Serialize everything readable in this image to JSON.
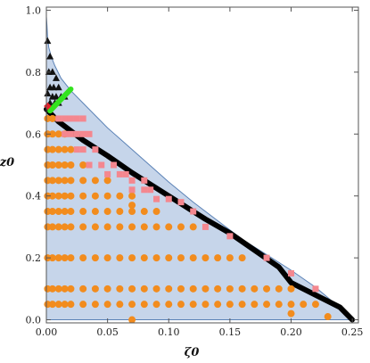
{
  "chart_data": {
    "type": "scatter",
    "xlabel": "ζ0",
    "ylabel": "z0",
    "xlim": [
      0,
      0.255
    ],
    "ylim": [
      -0.01,
      1.01
    ],
    "x_ticks": [
      "0.00",
      "0.05",
      "0.10",
      "0.15",
      "0.20",
      "0.25"
    ],
    "x_tick_values": [
      0,
      0.05,
      0.1,
      0.15,
      0.2,
      0.25
    ],
    "y_ticks": [
      "0.0",
      "0.2",
      "0.4",
      "0.6",
      "0.8",
      "1.0"
    ],
    "y_tick_values": [
      0,
      0.2,
      0.4,
      0.6,
      0.8,
      1.0
    ],
    "colors": {
      "region_fill": "#c6d5ea",
      "region_edge": "#5b82b6",
      "circles": "#f28c1e",
      "squares": "#f4878f",
      "triangles": "#111111",
      "thick_curve": "#000000",
      "green_segment": "#33e31f",
      "red_mark": "#e8202a"
    },
    "region_boundary": [
      [
        0.0,
        0.98
      ],
      [
        0.0005,
        0.95
      ],
      [
        0.001,
        0.91
      ],
      [
        0.002,
        0.88
      ],
      [
        0.004,
        0.85
      ],
      [
        0.007,
        0.82
      ],
      [
        0.012,
        0.78
      ],
      [
        0.02,
        0.74
      ],
      [
        0.03,
        0.7
      ],
      [
        0.04,
        0.66
      ],
      [
        0.05,
        0.62
      ],
      [
        0.06,
        0.585
      ],
      [
        0.07,
        0.55
      ],
      [
        0.08,
        0.515
      ],
      [
        0.09,
        0.48
      ],
      [
        0.1,
        0.445
      ],
      [
        0.12,
        0.38
      ],
      [
        0.14,
        0.32
      ],
      [
        0.16,
        0.26
      ],
      [
        0.18,
        0.21
      ],
      [
        0.2,
        0.16
      ],
      [
        0.22,
        0.105
      ],
      [
        0.235,
        0.055
      ],
      [
        0.245,
        0.02
      ],
      [
        0.25,
        0.0
      ],
      [
        0.0,
        0.0
      ]
    ],
    "thick_curve": [
      [
        0.0,
        0.68
      ],
      [
        0.01,
        0.64
      ],
      [
        0.03,
        0.58
      ],
      [
        0.05,
        0.53
      ],
      [
        0.07,
        0.475
      ],
      [
        0.09,
        0.425
      ],
      [
        0.11,
        0.375
      ],
      [
        0.13,
        0.325
      ],
      [
        0.15,
        0.28
      ],
      [
        0.17,
        0.225
      ],
      [
        0.19,
        0.17
      ],
      [
        0.2,
        0.12
      ],
      [
        0.22,
        0.08
      ],
      [
        0.24,
        0.04
      ],
      [
        0.25,
        0.0
      ]
    ],
    "green_segment": [
      [
        0.003,
        0.675
      ],
      [
        0.02,
        0.745
      ]
    ],
    "red_mark": [
      0.001,
      0.69
    ],
    "series": [
      {
        "marker": "circle",
        "points": [
          [
            0.001,
            0.65
          ],
          [
            0.005,
            0.65
          ],
          [
            0.001,
            0.6
          ],
          [
            0.005,
            0.6
          ],
          [
            0.01,
            0.6
          ],
          [
            0.015,
            0.6
          ],
          [
            0.001,
            0.55
          ],
          [
            0.005,
            0.55
          ],
          [
            0.01,
            0.55
          ],
          [
            0.015,
            0.55
          ],
          [
            0.02,
            0.55
          ],
          [
            0.001,
            0.5
          ],
          [
            0.005,
            0.5
          ],
          [
            0.01,
            0.5
          ],
          [
            0.015,
            0.5
          ],
          [
            0.02,
            0.5
          ],
          [
            0.03,
            0.5
          ],
          [
            0.001,
            0.45
          ],
          [
            0.005,
            0.45
          ],
          [
            0.01,
            0.45
          ],
          [
            0.015,
            0.45
          ],
          [
            0.02,
            0.45
          ],
          [
            0.03,
            0.45
          ],
          [
            0.04,
            0.45
          ],
          [
            0.05,
            0.45
          ],
          [
            0.001,
            0.4
          ],
          [
            0.005,
            0.4
          ],
          [
            0.01,
            0.4
          ],
          [
            0.015,
            0.4
          ],
          [
            0.02,
            0.4
          ],
          [
            0.03,
            0.4
          ],
          [
            0.04,
            0.4
          ],
          [
            0.05,
            0.4
          ],
          [
            0.06,
            0.4
          ],
          [
            0.07,
            0.4
          ],
          [
            0.07,
            0.37
          ],
          [
            0.001,
            0.35
          ],
          [
            0.005,
            0.35
          ],
          [
            0.01,
            0.35
          ],
          [
            0.015,
            0.35
          ],
          [
            0.02,
            0.35
          ],
          [
            0.03,
            0.35
          ],
          [
            0.04,
            0.35
          ],
          [
            0.05,
            0.35
          ],
          [
            0.06,
            0.35
          ],
          [
            0.07,
            0.35
          ],
          [
            0.08,
            0.35
          ],
          [
            0.09,
            0.35
          ],
          [
            0.001,
            0.3
          ],
          [
            0.005,
            0.3
          ],
          [
            0.01,
            0.3
          ],
          [
            0.015,
            0.3
          ],
          [
            0.02,
            0.3
          ],
          [
            0.03,
            0.3
          ],
          [
            0.04,
            0.3
          ],
          [
            0.05,
            0.3
          ],
          [
            0.06,
            0.3
          ],
          [
            0.07,
            0.3
          ],
          [
            0.08,
            0.3
          ],
          [
            0.09,
            0.3
          ],
          [
            0.1,
            0.3
          ],
          [
            0.11,
            0.3
          ],
          [
            0.12,
            0.3
          ],
          [
            0.001,
            0.2
          ],
          [
            0.005,
            0.2
          ],
          [
            0.01,
            0.2
          ],
          [
            0.015,
            0.2
          ],
          [
            0.02,
            0.2
          ],
          [
            0.03,
            0.2
          ],
          [
            0.04,
            0.2
          ],
          [
            0.05,
            0.2
          ],
          [
            0.06,
            0.2
          ],
          [
            0.07,
            0.2
          ],
          [
            0.08,
            0.2
          ],
          [
            0.09,
            0.2
          ],
          [
            0.1,
            0.2
          ],
          [
            0.11,
            0.2
          ],
          [
            0.12,
            0.2
          ],
          [
            0.13,
            0.2
          ],
          [
            0.14,
            0.2
          ],
          [
            0.15,
            0.2
          ],
          [
            0.16,
            0.2
          ],
          [
            0.001,
            0.1
          ],
          [
            0.005,
            0.1
          ],
          [
            0.01,
            0.1
          ],
          [
            0.015,
            0.1
          ],
          [
            0.02,
            0.1
          ],
          [
            0.03,
            0.1
          ],
          [
            0.04,
            0.1
          ],
          [
            0.05,
            0.1
          ],
          [
            0.06,
            0.1
          ],
          [
            0.07,
            0.1
          ],
          [
            0.08,
            0.1
          ],
          [
            0.09,
            0.1
          ],
          [
            0.1,
            0.1
          ],
          [
            0.11,
            0.1
          ],
          [
            0.12,
            0.1
          ],
          [
            0.13,
            0.1
          ],
          [
            0.14,
            0.1
          ],
          [
            0.15,
            0.1
          ],
          [
            0.16,
            0.1
          ],
          [
            0.17,
            0.1
          ],
          [
            0.18,
            0.1
          ],
          [
            0.19,
            0.1
          ],
          [
            0.2,
            0.1
          ],
          [
            0.001,
            0.05
          ],
          [
            0.005,
            0.05
          ],
          [
            0.01,
            0.05
          ],
          [
            0.015,
            0.05
          ],
          [
            0.02,
            0.05
          ],
          [
            0.03,
            0.05
          ],
          [
            0.04,
            0.05
          ],
          [
            0.05,
            0.05
          ],
          [
            0.06,
            0.05
          ],
          [
            0.07,
            0.05
          ],
          [
            0.08,
            0.05
          ],
          [
            0.09,
            0.05
          ],
          [
            0.1,
            0.05
          ],
          [
            0.11,
            0.05
          ],
          [
            0.12,
            0.05
          ],
          [
            0.13,
            0.05
          ],
          [
            0.14,
            0.05
          ],
          [
            0.15,
            0.05
          ],
          [
            0.16,
            0.05
          ],
          [
            0.17,
            0.05
          ],
          [
            0.18,
            0.05
          ],
          [
            0.19,
            0.05
          ],
          [
            0.2,
            0.05
          ],
          [
            0.21,
            0.05
          ],
          [
            0.22,
            0.05
          ],
          [
            0.2,
            0.02
          ],
          [
            0.23,
            0.01
          ],
          [
            0.07,
            0.0
          ]
        ]
      },
      {
        "marker": "square",
        "points": [
          [
            0.01,
            0.65
          ],
          [
            0.015,
            0.65
          ],
          [
            0.02,
            0.65
          ],
          [
            0.025,
            0.65
          ],
          [
            0.03,
            0.65
          ],
          [
            0.015,
            0.6
          ],
          [
            0.02,
            0.6
          ],
          [
            0.025,
            0.6
          ],
          [
            0.03,
            0.6
          ],
          [
            0.035,
            0.6
          ],
          [
            0.025,
            0.55
          ],
          [
            0.03,
            0.55
          ],
          [
            0.04,
            0.55
          ],
          [
            0.035,
            0.5
          ],
          [
            0.045,
            0.5
          ],
          [
            0.055,
            0.5
          ],
          [
            0.05,
            0.47
          ],
          [
            0.06,
            0.47
          ],
          [
            0.065,
            0.47
          ],
          [
            0.07,
            0.45
          ],
          [
            0.08,
            0.45
          ],
          [
            0.07,
            0.42
          ],
          [
            0.08,
            0.42
          ],
          [
            0.085,
            0.42
          ],
          [
            0.09,
            0.39
          ],
          [
            0.1,
            0.39
          ],
          [
            0.11,
            0.38
          ],
          [
            0.12,
            0.35
          ],
          [
            0.13,
            0.3
          ],
          [
            0.15,
            0.27
          ],
          [
            0.18,
            0.2
          ],
          [
            0.2,
            0.15
          ],
          [
            0.22,
            0.1
          ]
        ]
      },
      {
        "marker": "triangle",
        "points": [
          [
            0.001,
            0.9
          ],
          [
            0.003,
            0.85
          ],
          [
            0.002,
            0.8
          ],
          [
            0.005,
            0.8
          ],
          [
            0.008,
            0.78
          ],
          [
            0.003,
            0.75
          ],
          [
            0.006,
            0.75
          ],
          [
            0.01,
            0.75
          ],
          [
            0.001,
            0.73
          ],
          [
            0.005,
            0.72
          ],
          [
            0.008,
            0.72
          ],
          [
            0.012,
            0.72
          ],
          [
            0.015,
            0.72
          ],
          [
            0.003,
            0.7
          ],
          [
            0.007,
            0.7
          ],
          [
            0.01,
            0.7
          ]
        ]
      }
    ]
  }
}
